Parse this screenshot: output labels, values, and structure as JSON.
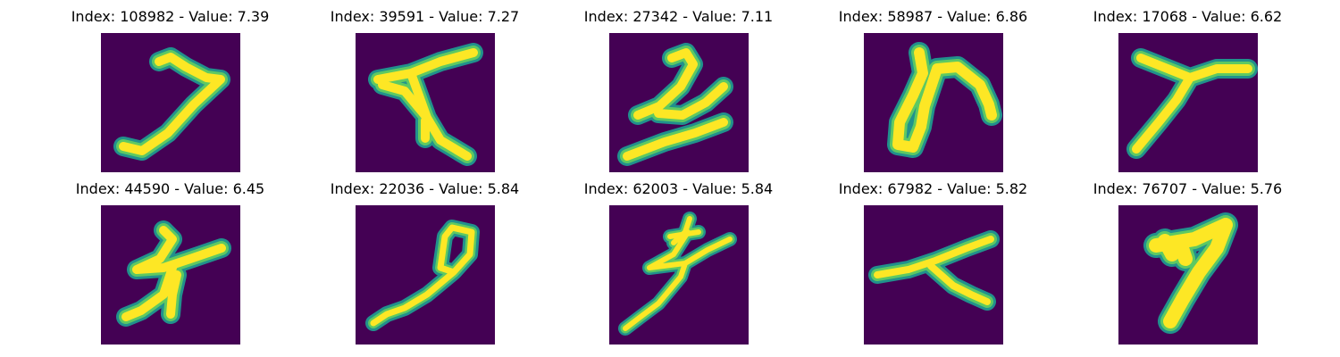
{
  "colors": {
    "background": "#440154",
    "stroke_core": "#fde725",
    "stroke_mid": "#5ec962",
    "stroke_edge": "#21918c"
  },
  "grid": {
    "rows": 2,
    "columns": 5
  },
  "samples": [
    {
      "title": "Index: 108982 - Value: 7.39",
      "index": 108982,
      "value": 7.39
    },
    {
      "title": "Index: 39591 - Value: 7.27",
      "index": 39591,
      "value": 7.27
    },
    {
      "title": "Index: 27342 - Value: 7.11",
      "index": 27342,
      "value": 7.11
    },
    {
      "title": "Index: 58987 - Value: 6.86",
      "index": 58987,
      "value": 6.86
    },
    {
      "title": "Index: 17068 - Value: 6.62",
      "index": 17068,
      "value": 6.62
    },
    {
      "title": "Index: 44590 - Value: 6.45",
      "index": 44590,
      "value": 6.45
    },
    {
      "title": "Index: 22036 - Value: 5.84",
      "index": 22036,
      "value": 5.84
    },
    {
      "title": "Index: 62003 - Value: 5.84",
      "index": 62003,
      "value": 5.84
    },
    {
      "title": "Index: 67982 - Value: 5.82",
      "index": 67982,
      "value": 5.82
    },
    {
      "title": "Index: 76707 - Value: 5.76",
      "index": 76707,
      "value": 5.76
    }
  ]
}
